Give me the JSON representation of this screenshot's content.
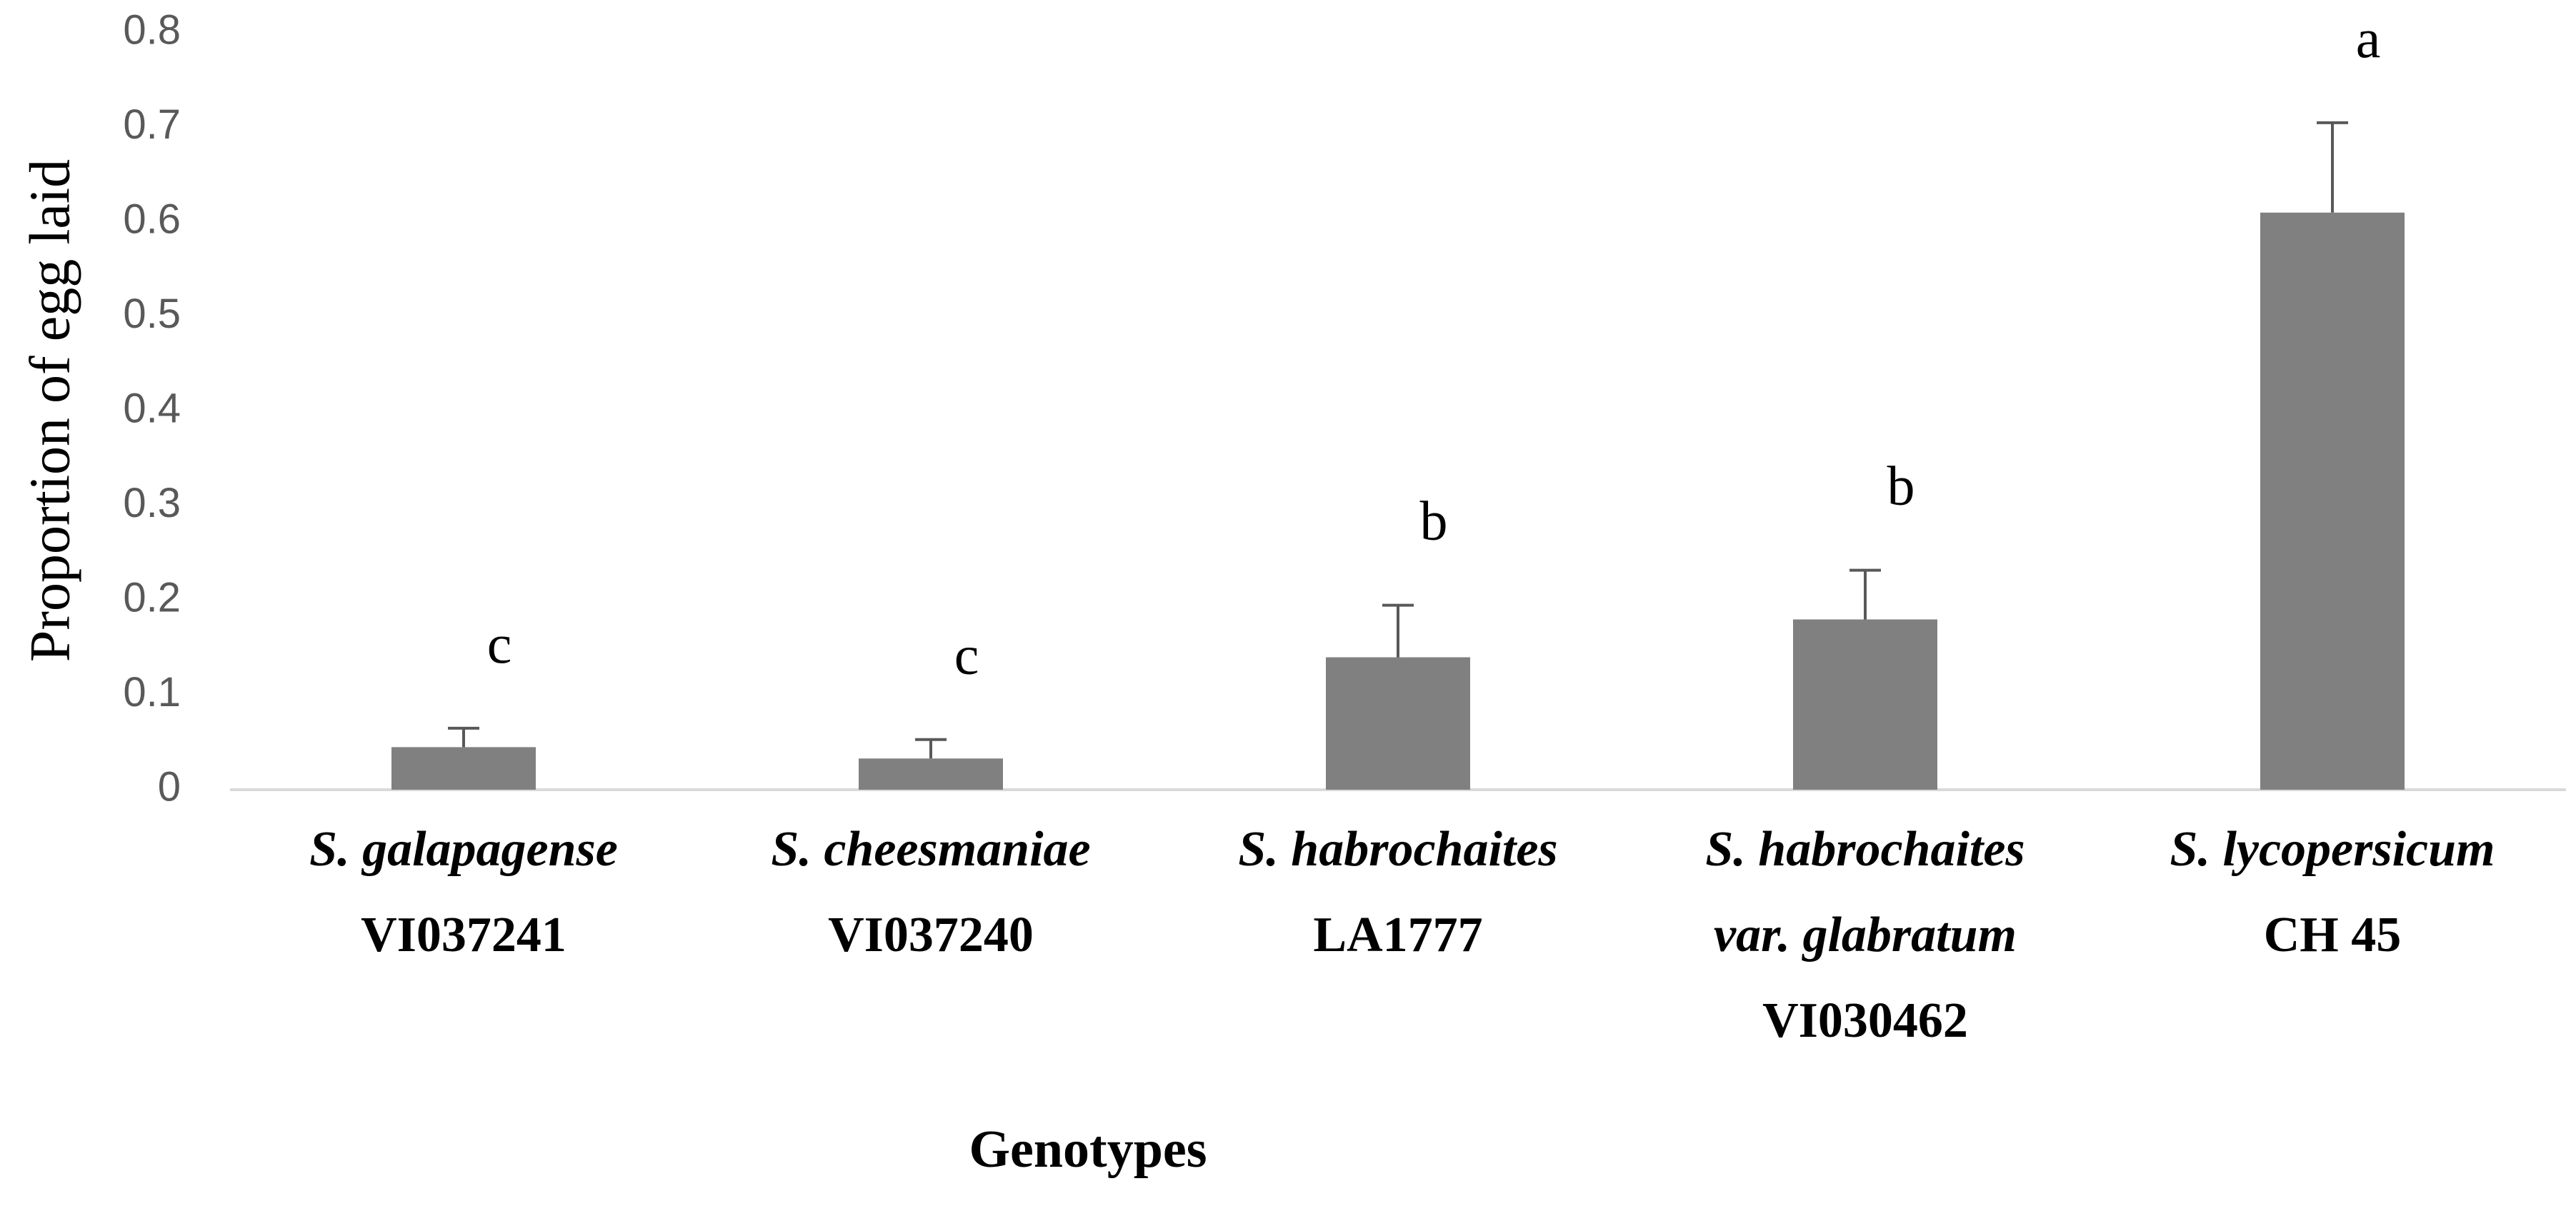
{
  "chart_data": {
    "type": "bar",
    "y_label": "Proportion of egg laid",
    "x_label": "Genotypes",
    "categories": [
      [
        "S. galapagense",
        "VI037241"
      ],
      [
        "S. cheesmaniae",
        "VI037240"
      ],
      [
        "S. habrochaites",
        "LA1777"
      ],
      [
        "S. habrochaites",
        "var. glabratum",
        "VI030462"
      ],
      [
        "S. lycopersicum",
        "CH 45"
      ]
    ],
    "values": [
      0.045,
      0.033,
      0.14,
      0.18,
      0.61
    ],
    "errors": [
      0.02,
      0.02,
      0.055,
      0.052,
      0.095
    ],
    "labels": [
      "c",
      "c",
      "b",
      "b",
      "a"
    ],
    "color": "#808080",
    "error_color": "#595959",
    "ylim": [
      0,
      0.8
    ],
    "yticks": [
      0,
      0.1,
      0.2,
      0.3,
      0.4,
      0.5,
      0.6,
      0.7,
      0.8
    ],
    "grid": false
  }
}
